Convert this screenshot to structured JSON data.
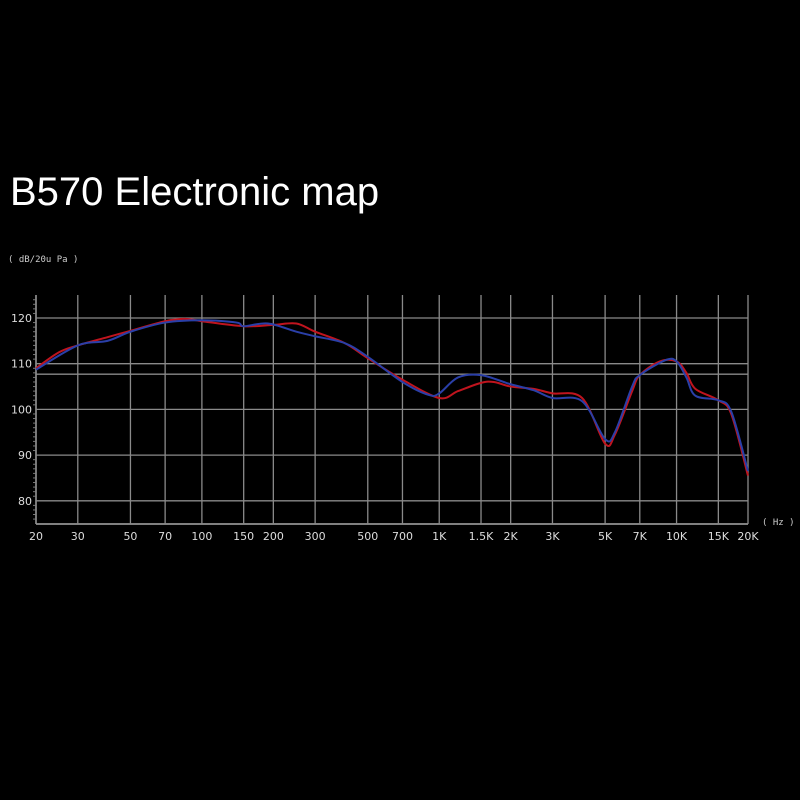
{
  "title": "B570 Electronic map",
  "chart_data": {
    "type": "line",
    "title": "B570 Electronic map",
    "ylabel": "( dB/20u Pa )",
    "xlabel": "( Hz )",
    "xscale": "log",
    "xlim": [
      20,
      20000
    ],
    "ylim": [
      75,
      125
    ],
    "grid": true,
    "x_ticks": [
      20,
      30,
      50,
      70,
      100,
      150,
      200,
      300,
      500,
      700,
      1000,
      1500,
      2000,
      3000,
      5000,
      7000,
      10000,
      15000,
      20000
    ],
    "x_tick_labels": [
      "20",
      "30",
      "50",
      "70",
      "100",
      "150",
      "200",
      "300",
      "500",
      "700",
      "1K",
      "1.5K",
      "2K",
      "3K",
      "5K",
      "7K",
      "10K",
      "15K",
      "20K"
    ],
    "y_ticks": [
      80,
      90,
      100,
      110,
      120
    ],
    "y_tick_labels": [
      "80",
      "90",
      "100",
      "110",
      "120"
    ],
    "reference_line": 107.7,
    "series": [
      {
        "color": "#c0141e",
        "x": [
          20,
          25,
          30,
          40,
          50,
          70,
          85,
          100,
          150,
          200,
          250,
          300,
          400,
          500,
          700,
          1000,
          1200,
          1500,
          1700,
          2000,
          2500,
          3000,
          4000,
          5000,
          5500,
          6500,
          7000,
          8500,
          10000,
          11000,
          12000,
          15000,
          17000,
          20000
        ],
        "y": [
          109,
          112.5,
          114,
          115.8,
          117.2,
          119.3,
          119.8,
          119.3,
          118.2,
          118.5,
          118.8,
          117,
          114.5,
          111.2,
          106.5,
          102.5,
          104,
          105.8,
          106,
          105,
          104.5,
          103.5,
          102.5,
          92.5,
          94.5,
          104,
          107.5,
          110.5,
          110.5,
          108,
          104.5,
          102,
          99,
          85.5
        ]
      },
      {
        "color": "#2a3fa8",
        "x": [
          20,
          30,
          40,
          50,
          70,
          100,
          140,
          150,
          190,
          250,
          300,
          400,
          500,
          700,
          900,
          1000,
          1200,
          1500,
          2000,
          2500,
          3000,
          4000,
          5000,
          5500,
          6500,
          7000,
          9000,
          10000,
          11000,
          12000,
          15000,
          17000,
          20000
        ],
        "y": [
          108.7,
          114,
          115,
          117,
          119,
          119.5,
          119,
          118.2,
          118.8,
          117,
          116,
          114.5,
          111.5,
          106,
          103.2,
          103.5,
          107,
          107.5,
          105.5,
          104.2,
          102.5,
          101.8,
          93.5,
          95,
          105,
          107.5,
          110.8,
          110.5,
          107,
          103,
          102,
          99.5,
          86.5
        ]
      }
    ]
  }
}
